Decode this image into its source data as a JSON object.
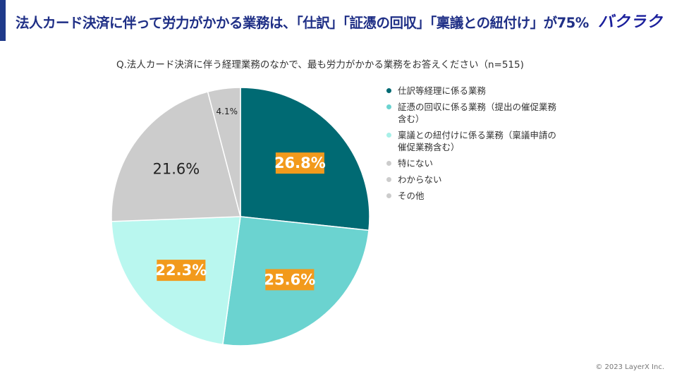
{
  "header": {
    "title": "法人カード決済に伴って労力がかかる業務は、「仕訳」「証憑の回収」「稟議との紐付け」が75%",
    "brand": "バクラク"
  },
  "footer": {
    "copyright": "© 2023 LayerX Inc."
  },
  "colors": {
    "accent": "#1f3a8a",
    "title": "#1f2f86",
    "highlight_label_bg": "#f29a1c"
  },
  "chart_data": {
    "type": "pie",
    "title": "Q.法人カード決済に伴う経理業務のなかで、最も労力がかかる業務をお答えください（n=515)",
    "start_angle_deg": 0,
    "direction": "clockwise",
    "slices": [
      {
        "label": "仕訳等経理に係る業務",
        "value": 26.8,
        "display": "26.8%",
        "color": "#006a73",
        "highlight": true
      },
      {
        "label": "証憑の回収に係る業務（提出の催促業務\n含む）",
        "value": 25.6,
        "display": "25.6%",
        "color": "#6bd3d0",
        "highlight": true
      },
      {
        "label": "稟議との紐付けに係る業務（稟議申請の\n催促業務含む）",
        "value": 22.3,
        "display": "22.3%",
        "color": "#b9f7ef",
        "highlight": true
      },
      {
        "label": "特にない",
        "value": 21.6,
        "display": "21.6%",
        "color": "#cccccc",
        "highlight": false
      },
      {
        "label": "わからない",
        "value": 0,
        "display": "",
        "color": "#cccccc",
        "highlight": false
      },
      {
        "label": "その他",
        "value": 4.1,
        "display": "4.1%",
        "color": "#cccccc",
        "highlight": false
      }
    ]
  }
}
